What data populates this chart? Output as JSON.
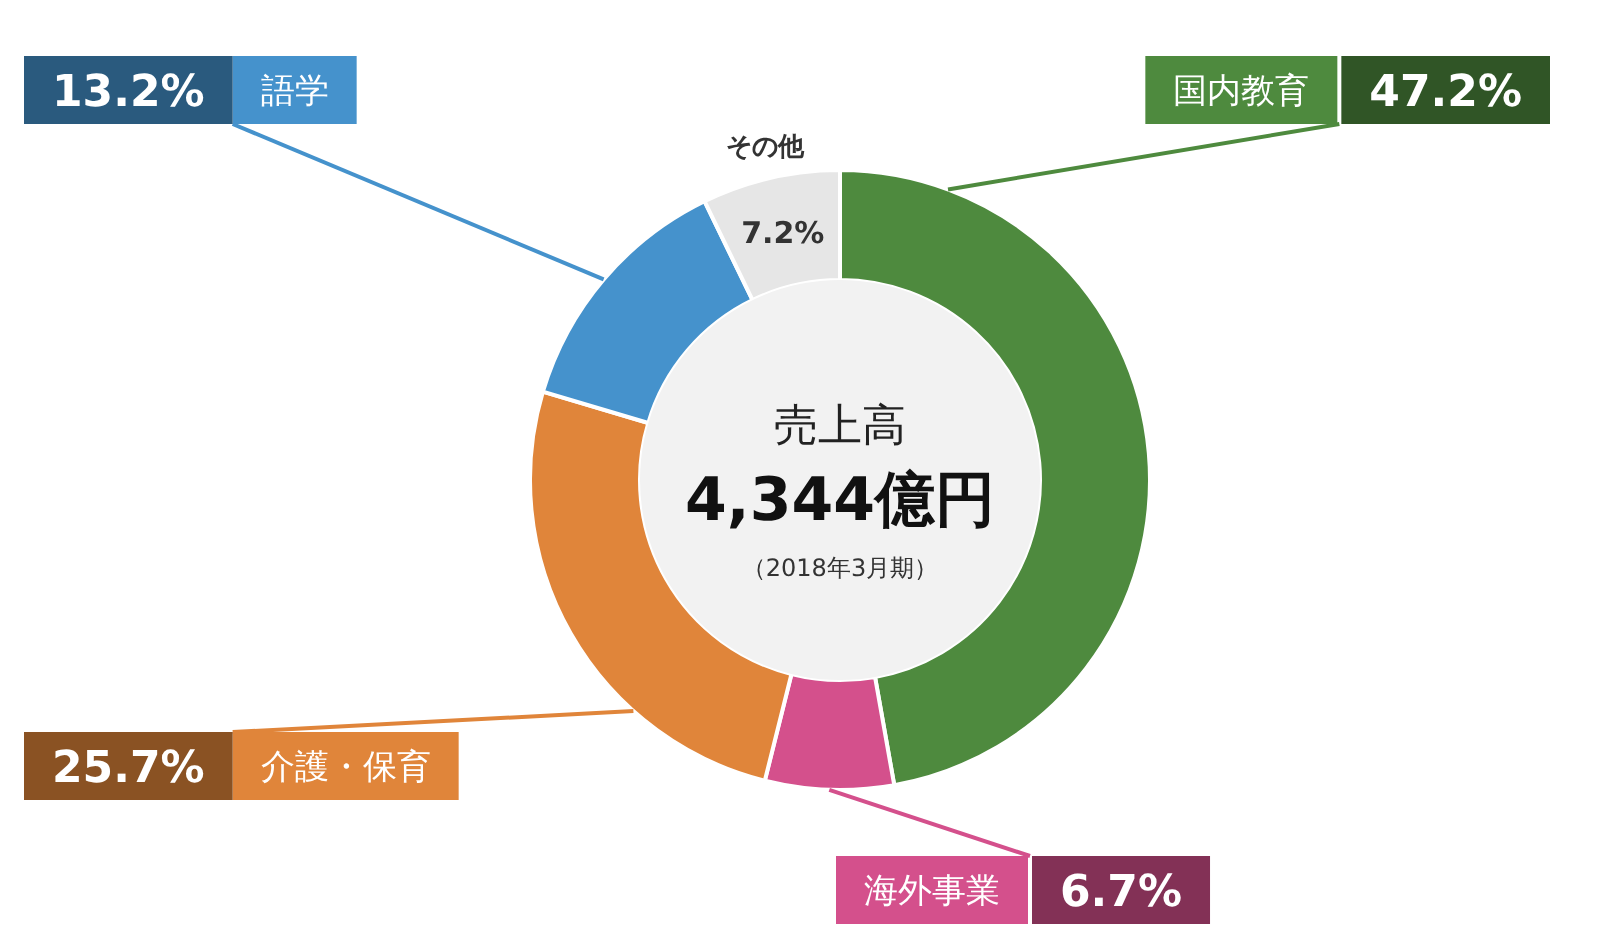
{
  "chart_data": {
    "type": "donut",
    "title": "売上高",
    "subtitle": "4,344億円",
    "annotations": [
      "（2018年3月期）"
    ],
    "categories": [
      "国内教育",
      "海外事業",
      "介護・保育",
      "語学",
      "その他"
    ],
    "values": [
      47.2,
      6.7,
      25.7,
      13.2,
      7.2
    ],
    "value_labels": [
      "47.2%",
      "6.7%",
      "25.7%",
      "13.2%",
      "7.2%"
    ],
    "colors": [
      "#4e8a3e",
      "#d4508c",
      "#e0853a",
      "#4592cc",
      "#e6e6e6"
    ]
  }
}
